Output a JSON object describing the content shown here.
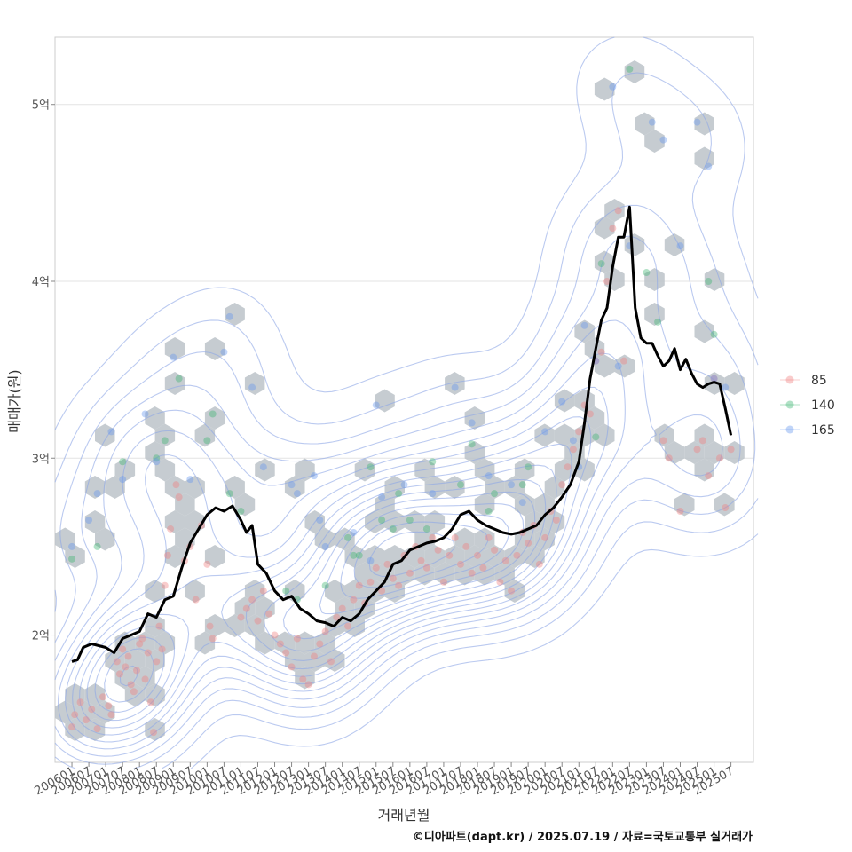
{
  "chart_data": {
    "type": "scatter",
    "xlabel": "거래년월",
    "ylabel": "매매가(원)",
    "caption": "©디아파트(dapt.kr) / 2025.07.19 / 자료=국토교통부 실거래가",
    "x_range": [
      "2005-07",
      "2026-03"
    ],
    "y_range": [
      1.28,
      5.38
    ],
    "y_unit": "억",
    "x_ticks": [
      "200601",
      "200607",
      "200701",
      "200707",
      "200801",
      "200807",
      "200901",
      "200907",
      "201001",
      "201007",
      "201101",
      "201107",
      "201201",
      "201207",
      "201301",
      "201307",
      "201401",
      "201407",
      "201501",
      "201507",
      "201601",
      "201607",
      "201701",
      "201707",
      "201801",
      "201807",
      "201901",
      "201907",
      "202001",
      "202007",
      "202101",
      "202107",
      "202201",
      "202207",
      "202301",
      "202307",
      "202401",
      "202407",
      "202501",
      "202507"
    ],
    "y_ticks": [
      {
        "value": 2,
        "label": "2억"
      },
      {
        "value": 3,
        "label": "3억"
      },
      {
        "value": 4,
        "label": "4억"
      },
      {
        "value": 5,
        "label": "5억"
      }
    ],
    "grid": true,
    "legend_position": "right",
    "series": [
      {
        "name": "85",
        "color": "#f08080",
        "points": [
          [
            "2006-01",
            1.48
          ],
          [
            "2006-02",
            1.55
          ],
          [
            "2006-04",
            1.62
          ],
          [
            "2006-06",
            1.52
          ],
          [
            "2006-08",
            1.58
          ],
          [
            "2006-10",
            1.47
          ],
          [
            "2006-12",
            1.65
          ],
          [
            "2007-02",
            1.6
          ],
          [
            "2007-03",
            1.55
          ],
          [
            "2007-05",
            1.85
          ],
          [
            "2007-06",
            1.78
          ],
          [
            "2007-07",
            1.92
          ],
          [
            "2007-08",
            1.82
          ],
          [
            "2007-09",
            1.88
          ],
          [
            "2007-10",
            1.72
          ],
          [
            "2007-11",
            1.68
          ],
          [
            "2007-12",
            1.8
          ],
          [
            "2008-01",
            1.95
          ],
          [
            "2008-02",
            1.98
          ],
          [
            "2008-03",
            1.75
          ],
          [
            "2008-04",
            1.9
          ],
          [
            "2008-05",
            1.62
          ],
          [
            "2008-06",
            1.45
          ],
          [
            "2008-07",
            1.85
          ],
          [
            "2008-08",
            2.05
          ],
          [
            "2008-09",
            1.92
          ],
          [
            "2008-10",
            2.28
          ],
          [
            "2008-11",
            2.45
          ],
          [
            "2008-12",
            2.6
          ],
          [
            "2009-02",
            2.85
          ],
          [
            "2009-03",
            2.78
          ],
          [
            "2009-05",
            2.42
          ],
          [
            "2009-07",
            2.5
          ],
          [
            "2009-09",
            2.2
          ],
          [
            "2009-11",
            2.62
          ],
          [
            "2010-01",
            2.4
          ],
          [
            "2010-02",
            2.05
          ],
          [
            "2010-03",
            1.98
          ],
          [
            "2011-01",
            2.1
          ],
          [
            "2011-03",
            2.15
          ],
          [
            "2011-05",
            2.2
          ],
          [
            "2011-07",
            2.08
          ],
          [
            "2011-09",
            2.25
          ],
          [
            "2011-11",
            2.12
          ],
          [
            "2012-01",
            2.0
          ],
          [
            "2012-03",
            1.95
          ],
          [
            "2012-05",
            1.9
          ],
          [
            "2012-07",
            1.82
          ],
          [
            "2012-09",
            1.98
          ],
          [
            "2012-11",
            1.75
          ],
          [
            "2013-01",
            1.72
          ],
          [
            "2013-03",
            1.88
          ],
          [
            "2013-05",
            1.95
          ],
          [
            "2013-07",
            2.02
          ],
          [
            "2013-09",
            1.85
          ],
          [
            "2013-11",
            2.1
          ],
          [
            "2014-01",
            2.15
          ],
          [
            "2014-03",
            2.05
          ],
          [
            "2014-05",
            2.2
          ],
          [
            "2014-07",
            2.28
          ],
          [
            "2014-09",
            2.18
          ],
          [
            "2014-11",
            2.3
          ],
          [
            "2015-01",
            2.38
          ],
          [
            "2015-03",
            2.25
          ],
          [
            "2015-05",
            2.4
          ],
          [
            "2015-07",
            2.32
          ],
          [
            "2015-09",
            2.28
          ],
          [
            "2015-11",
            2.45
          ],
          [
            "2016-01",
            2.35
          ],
          [
            "2016-03",
            2.5
          ],
          [
            "2016-05",
            2.42
          ],
          [
            "2016-07",
            2.38
          ],
          [
            "2016-09",
            2.55
          ],
          [
            "2016-11",
            2.48
          ],
          [
            "2017-01",
            2.3
          ],
          [
            "2017-03",
            2.45
          ],
          [
            "2017-05",
            2.55
          ],
          [
            "2017-07",
            2.4
          ],
          [
            "2017-09",
            2.5
          ],
          [
            "2017-11",
            2.35
          ],
          [
            "2018-01",
            2.45
          ],
          [
            "2018-03",
            2.38
          ],
          [
            "2018-05",
            2.55
          ],
          [
            "2018-07",
            2.48
          ],
          [
            "2018-09",
            2.3
          ],
          [
            "2018-11",
            2.42
          ],
          [
            "2019-01",
            2.25
          ],
          [
            "2019-03",
            2.45
          ],
          [
            "2019-05",
            2.58
          ],
          [
            "2019-07",
            2.52
          ],
          [
            "2019-09",
            2.62
          ],
          [
            "2019-11",
            2.4
          ],
          [
            "2020-01",
            2.55
          ],
          [
            "2020-03",
            2.7
          ],
          [
            "2020-05",
            2.65
          ],
          [
            "2020-07",
            2.85
          ],
          [
            "2020-09",
            2.95
          ],
          [
            "2020-11",
            3.05
          ],
          [
            "2021-01",
            3.15
          ],
          [
            "2021-03",
            3.3
          ],
          [
            "2021-05",
            3.25
          ],
          [
            "2021-07",
            3.55
          ],
          [
            "2021-09",
            3.6
          ],
          [
            "2021-11",
            4.0
          ],
          [
            "2022-01",
            4.3
          ],
          [
            "2022-03",
            4.4
          ],
          [
            "2022-05",
            3.55
          ],
          [
            "2023-07",
            3.1
          ],
          [
            "2023-09",
            3.0
          ],
          [
            "2024-01",
            2.7
          ],
          [
            "2024-07",
            3.05
          ],
          [
            "2024-09",
            3.1
          ],
          [
            "2024-11",
            2.9
          ],
          [
            "2025-01",
            3.45
          ],
          [
            "2025-03",
            3.0
          ],
          [
            "2025-05",
            2.72
          ],
          [
            "2025-07",
            3.05
          ]
        ]
      },
      {
        "name": "140",
        "color": "#3cb371",
        "points": [
          [
            "2006-01",
            2.43
          ],
          [
            "2006-10",
            2.5
          ],
          [
            "2007-07",
            2.98
          ],
          [
            "2008-07",
            3.0
          ],
          [
            "2008-10",
            3.1
          ],
          [
            "2009-03",
            3.45
          ],
          [
            "2010-01",
            3.1
          ],
          [
            "2010-03",
            3.25
          ],
          [
            "2010-09",
            2.8
          ],
          [
            "2011-01",
            2.7
          ],
          [
            "2012-05",
            2.25
          ],
          [
            "2012-09",
            2.2
          ],
          [
            "2013-07",
            2.28
          ],
          [
            "2014-03",
            2.55
          ],
          [
            "2014-05",
            2.45
          ],
          [
            "2014-07",
            2.45
          ],
          [
            "2014-11",
            2.95
          ],
          [
            "2015-03",
            2.65
          ],
          [
            "2015-07",
            2.6
          ],
          [
            "2015-09",
            2.8
          ],
          [
            "2016-01",
            2.65
          ],
          [
            "2016-07",
            2.6
          ],
          [
            "2016-09",
            2.98
          ],
          [
            "2017-07",
            2.85
          ],
          [
            "2017-11",
            3.08
          ],
          [
            "2018-05",
            2.7
          ],
          [
            "2018-07",
            2.8
          ],
          [
            "2019-05",
            2.85
          ],
          [
            "2019-07",
            2.95
          ],
          [
            "2021-07",
            3.12
          ],
          [
            "2021-09",
            4.1
          ],
          [
            "2022-07",
            5.2
          ],
          [
            "2023-01",
            4.05
          ],
          [
            "2023-05",
            3.77
          ],
          [
            "2024-11",
            4.0
          ],
          [
            "2025-01",
            3.7
          ]
        ]
      },
      {
        "name": "165",
        "color": "#6495ed",
        "points": [
          [
            "2006-01",
            2.5
          ],
          [
            "2006-07",
            2.65
          ],
          [
            "2006-10",
            2.8
          ],
          [
            "2007-03",
            3.15
          ],
          [
            "2007-07",
            2.88
          ],
          [
            "2008-03",
            3.25
          ],
          [
            "2008-07",
            2.98
          ],
          [
            "2009-01",
            3.57
          ],
          [
            "2009-07",
            2.88
          ],
          [
            "2010-07",
            3.6
          ],
          [
            "2010-09",
            3.8
          ],
          [
            "2011-05",
            3.4
          ],
          [
            "2011-09",
            2.95
          ],
          [
            "2012-07",
            2.85
          ],
          [
            "2012-09",
            2.8
          ],
          [
            "2013-03",
            2.9
          ],
          [
            "2013-05",
            2.65
          ],
          [
            "2013-07",
            2.5
          ],
          [
            "2014-05",
            2.58
          ],
          [
            "2014-11",
            2.42
          ],
          [
            "2015-01",
            3.3
          ],
          [
            "2015-03",
            2.78
          ],
          [
            "2015-11",
            2.85
          ],
          [
            "2016-09",
            2.8
          ],
          [
            "2017-05",
            3.4
          ],
          [
            "2017-11",
            3.2
          ],
          [
            "2018-05",
            2.9
          ],
          [
            "2019-01",
            2.85
          ],
          [
            "2019-05",
            2.75
          ],
          [
            "2020-01",
            3.15
          ],
          [
            "2020-07",
            3.32
          ],
          [
            "2020-11",
            3.1
          ],
          [
            "2021-01",
            2.95
          ],
          [
            "2021-03",
            3.75
          ],
          [
            "2021-07",
            3.55
          ],
          [
            "2022-01",
            5.1
          ],
          [
            "2022-03",
            3.52
          ],
          [
            "2022-07",
            4.2
          ],
          [
            "2023-03",
            4.9
          ],
          [
            "2023-07",
            4.8
          ],
          [
            "2024-01",
            4.2
          ],
          [
            "2024-07",
            4.9
          ],
          [
            "2024-11",
            4.65
          ],
          [
            "2025-01",
            3.45
          ],
          [
            "2025-05",
            3.4
          ]
        ]
      }
    ],
    "median_line": {
      "color": "#000000",
      "points": [
        [
          "2006-01",
          1.85
        ],
        [
          "2006-03",
          1.86
        ],
        [
          "2006-05",
          1.93
        ],
        [
          "2006-08",
          1.95
        ],
        [
          "2007-01",
          1.93
        ],
        [
          "2007-04",
          1.9
        ],
        [
          "2007-07",
          1.98
        ],
        [
          "2007-10",
          2.0
        ],
        [
          "2008-01",
          2.02
        ],
        [
          "2008-04",
          2.12
        ],
        [
          "2008-07",
          2.1
        ],
        [
          "2008-10",
          2.2
        ],
        [
          "2009-01",
          2.22
        ],
        [
          "2009-04",
          2.38
        ],
        [
          "2009-07",
          2.52
        ],
        [
          "2009-10",
          2.6
        ],
        [
          "2010-01",
          2.68
        ],
        [
          "2010-04",
          2.72
        ],
        [
          "2010-07",
          2.7
        ],
        [
          "2010-10",
          2.73
        ],
        [
          "2011-01",
          2.65
        ],
        [
          "2011-03",
          2.58
        ],
        [
          "2011-05",
          2.62
        ],
        [
          "2011-07",
          2.4
        ],
        [
          "2011-10",
          2.35
        ],
        [
          "2012-01",
          2.25
        ],
        [
          "2012-04",
          2.2
        ],
        [
          "2012-07",
          2.22
        ],
        [
          "2012-10",
          2.15
        ],
        [
          "2013-01",
          2.12
        ],
        [
          "2013-04",
          2.08
        ],
        [
          "2013-07",
          2.07
        ],
        [
          "2013-10",
          2.05
        ],
        [
          "2014-01",
          2.1
        ],
        [
          "2014-04",
          2.08
        ],
        [
          "2014-07",
          2.12
        ],
        [
          "2014-10",
          2.2
        ],
        [
          "2015-01",
          2.25
        ],
        [
          "2015-04",
          2.3
        ],
        [
          "2015-07",
          2.4
        ],
        [
          "2015-10",
          2.42
        ],
        [
          "2016-01",
          2.48
        ],
        [
          "2016-04",
          2.5
        ],
        [
          "2016-07",
          2.52
        ],
        [
          "2016-10",
          2.53
        ],
        [
          "2017-01",
          2.55
        ],
        [
          "2017-04",
          2.6
        ],
        [
          "2017-07",
          2.68
        ],
        [
          "2017-10",
          2.7
        ],
        [
          "2018-01",
          2.65
        ],
        [
          "2018-04",
          2.62
        ],
        [
          "2018-07",
          2.6
        ],
        [
          "2018-10",
          2.58
        ],
        [
          "2019-01",
          2.57
        ],
        [
          "2019-04",
          2.58
        ],
        [
          "2019-07",
          2.6
        ],
        [
          "2019-10",
          2.62
        ],
        [
          "2020-01",
          2.68
        ],
        [
          "2020-04",
          2.72
        ],
        [
          "2020-07",
          2.78
        ],
        [
          "2020-10",
          2.85
        ],
        [
          "2021-01",
          2.98
        ],
        [
          "2021-03",
          3.2
        ],
        [
          "2021-05",
          3.45
        ],
        [
          "2021-07",
          3.62
        ],
        [
          "2021-09",
          3.78
        ],
        [
          "2021-11",
          3.85
        ],
        [
          "2022-01",
          4.08
        ],
        [
          "2022-03",
          4.25
        ],
        [
          "2022-05",
          4.25
        ],
        [
          "2022-07",
          4.42
        ],
        [
          "2022-09",
          3.85
        ],
        [
          "2022-11",
          3.68
        ],
        [
          "2023-01",
          3.65
        ],
        [
          "2023-03",
          3.65
        ],
        [
          "2023-05",
          3.58
        ],
        [
          "2023-07",
          3.52
        ],
        [
          "2023-09",
          3.55
        ],
        [
          "2023-11",
          3.62
        ],
        [
          "2024-01",
          3.5
        ],
        [
          "2024-03",
          3.56
        ],
        [
          "2024-05",
          3.48
        ],
        [
          "2024-07",
          3.42
        ],
        [
          "2024-09",
          3.4
        ],
        [
          "2024-11",
          3.42
        ],
        [
          "2025-01",
          3.43
        ],
        [
          "2025-03",
          3.42
        ],
        [
          "2025-05",
          3.28
        ],
        [
          "2025-07",
          3.13
        ]
      ]
    }
  }
}
